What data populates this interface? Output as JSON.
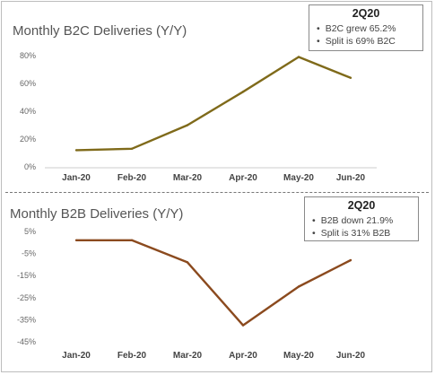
{
  "chart_data": [
    {
      "type": "line",
      "title": "Monthly B2C Deliveries (Y/Y)",
      "categories": [
        "Jan-20",
        "Feb-20",
        "Mar-20",
        "Apr-20",
        "May-20",
        "Jun-20"
      ],
      "y_ticks": [
        "0%",
        "20%",
        "40%",
        "60%",
        "80%"
      ],
      "ylim": [
        0,
        80
      ],
      "series": [
        {
          "values": [
            12,
            13,
            30,
            54,
            79,
            64
          ]
        }
      ],
      "color": "#7f6a1a",
      "grid": false,
      "annotation": {
        "heading": "2Q20",
        "bullets": [
          "B2C grew 65.2%",
          "Split is 69% B2C"
        ]
      }
    },
    {
      "type": "line",
      "title": "Monthly B2B Deliveries (Y/Y)",
      "categories": [
        "Jan-20",
        "Feb-20",
        "Mar-20",
        "Apr-20",
        "May-20",
        "Jun-20"
      ],
      "y_ticks": [
        "5%",
        "-5%",
        "-15%",
        "-25%",
        "-35%",
        "-45%"
      ],
      "ylim": [
        -45,
        5
      ],
      "series": [
        {
          "values": [
            1,
            1,
            -9,
            -37.5,
            -20,
            -8
          ]
        }
      ],
      "color": "#8b4a1e",
      "grid": false,
      "annotation": {
        "heading": "2Q20",
        "bullets": [
          "B2B down 21.9%",
          "Split is 31% B2B"
        ]
      }
    }
  ]
}
